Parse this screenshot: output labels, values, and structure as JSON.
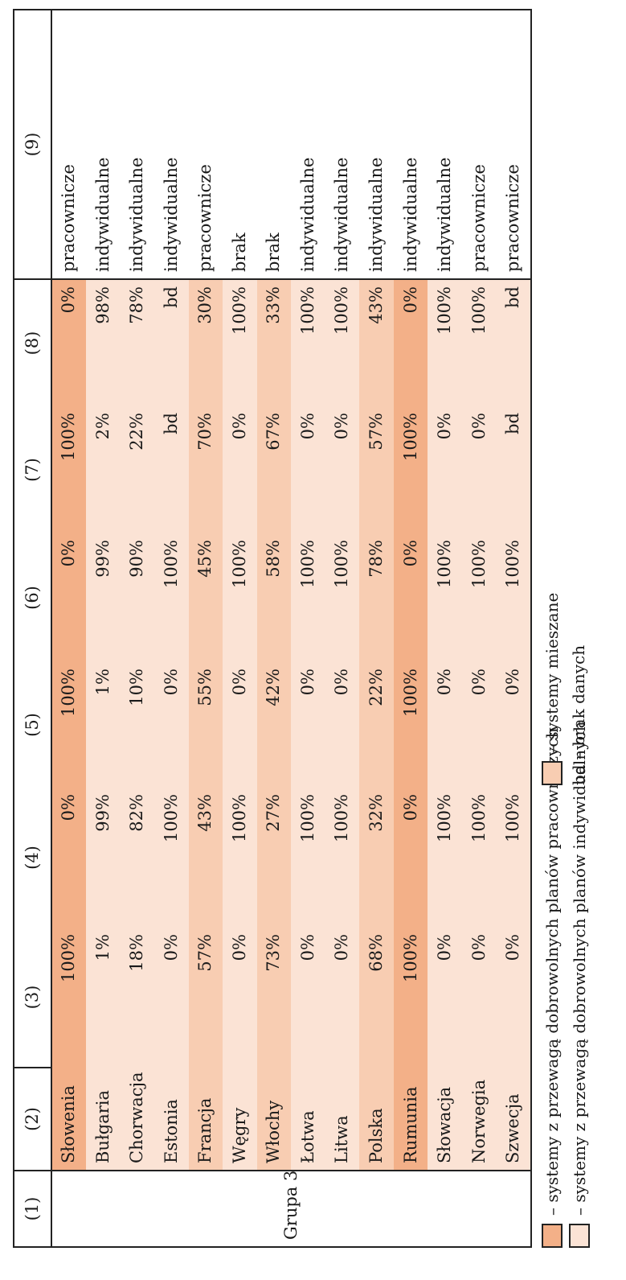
{
  "header": [
    "(1)",
    "(2)",
    "(3)",
    "(4)",
    "(5)",
    "(6)",
    "(7)",
    "(8)",
    "(9)"
  ],
  "group_label": "Grupa 3",
  "rows": [
    {
      "country": "Słowenia",
      "c3": "100%",
      "c4": "0%",
      "c5": "100%",
      "c6": "0%",
      "c7": "100%",
      "c8": "0%",
      "type": "pracownicze",
      "category": "pracownicze"
    },
    {
      "country": "Bułgaria",
      "c3": "1%",
      "c4": "99%",
      "c5": "1%",
      "c6": "99%",
      "c7": "2%",
      "c8": "98%",
      "type": "indywidualne",
      "category": "indywidualne"
    },
    {
      "country": "Chorwacja",
      "c3": "18%",
      "c4": "82%",
      "c5": "10%",
      "c6": "90%",
      "c7": "22%",
      "c8": "78%",
      "type": "indywidualne",
      "category": "indywidualne"
    },
    {
      "country": "Estonia",
      "c3": "0%",
      "c4": "100%",
      "c5": "0%",
      "c6": "100%",
      "c7": "bd",
      "c8": "bd",
      "type": "indywidualne",
      "category": "indywidualne"
    },
    {
      "country": "Francja",
      "c3": "57%",
      "c4": "43%",
      "c5": "55%",
      "c6": "45%",
      "c7": "70%",
      "c8": "30%",
      "type": "pracownicze",
      "category": "mieszane"
    },
    {
      "country": "Węgry",
      "c3": "0%",
      "c4": "100%",
      "c5": "0%",
      "c6": "100%",
      "c7": "0%",
      "c8": "100%",
      "type": "brak",
      "category": "indywidualne"
    },
    {
      "country": "Włochy",
      "c3": "73%",
      "c4": "27%",
      "c5": "42%",
      "c6": "58%",
      "c7": "67%",
      "c8": "33%",
      "type": "brak",
      "category": "mieszane"
    },
    {
      "country": "Łotwa",
      "c3": "0%",
      "c4": "100%",
      "c5": "0%",
      "c6": "100%",
      "c7": "0%",
      "c8": "100%",
      "type": "indywidualne",
      "category": "indywidualne"
    },
    {
      "country": "Litwa",
      "c3": "0%",
      "c4": "100%",
      "c5": "0%",
      "c6": "100%",
      "c7": "0%",
      "c8": "100%",
      "type": "indywidualne",
      "category": "indywidualne"
    },
    {
      "country": "Polska",
      "c3": "68%",
      "c4": "32%",
      "c5": "22%",
      "c6": "78%",
      "c7": "57%",
      "c8": "43%",
      "type": "indywidualne",
      "category": "mieszane"
    },
    {
      "country": "Rumunia",
      "c3": "100%",
      "c4": "0%",
      "c5": "100%",
      "c6": "0%",
      "c7": "100%",
      "c8": "0%",
      "type": "indywidualne",
      "category": "pracownicze"
    },
    {
      "country": "Słowacja",
      "c3": "0%",
      "c4": "100%",
      "c5": "0%",
      "c6": "100%",
      "c7": "0%",
      "c8": "100%",
      "type": "indywidualne",
      "category": "indywidualne"
    },
    {
      "country": "Norwegia",
      "c3": "0%",
      "c4": "100%",
      "c5": "0%",
      "c6": "100%",
      "c7": "0%",
      "c8": "100%",
      "type": "pracownicze",
      "category": "indywidualne"
    },
    {
      "country": "Szwecja",
      "c3": "0%",
      "c4": "100%",
      "c5": "0%",
      "c6": "100%",
      "c7": "bd",
      "c8": "bd",
      "type": "pracownicze",
      "category": "indywidualne"
    }
  ],
  "legend": {
    "pracownicze": "– systemy z przewagą dobrowolnych planów pracowniczych",
    "indywidualne": "– systemy z przewagą dobrowolnych planów indywidualnych",
    "mieszane": "– systemy mieszane",
    "bd": "bd – brak danych"
  },
  "colors": {
    "pracownicze": "#f3b088",
    "mieszane": "#f8cdb2",
    "indywidualne": "#fbe3d5"
  }
}
